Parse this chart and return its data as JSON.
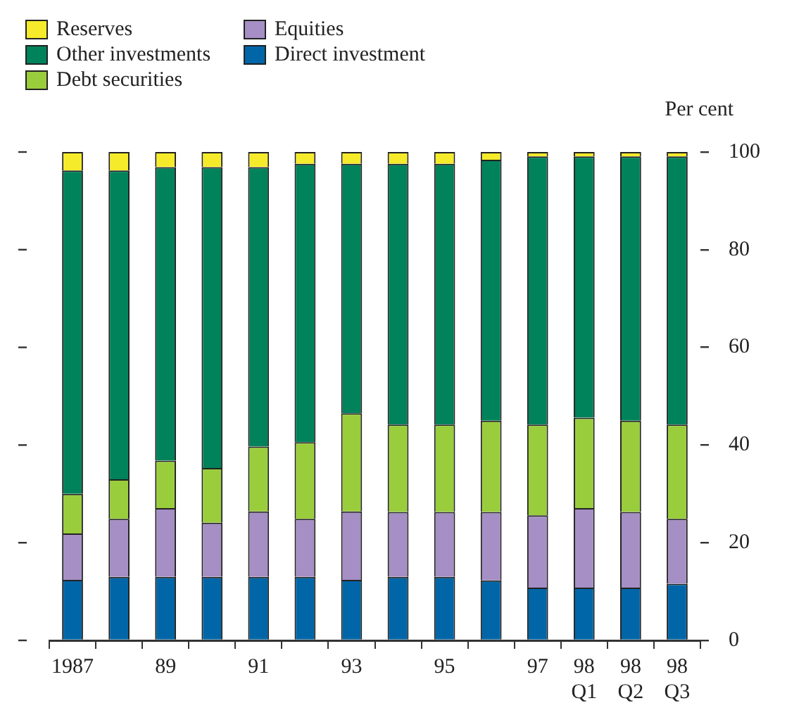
{
  "chart_data": {
    "type": "bar",
    "stacked": true,
    "ylabel": "Per cent",
    "legend": "top left",
    "grid": false,
    "categories": [
      "1987",
      null,
      "89",
      null,
      "91",
      null,
      "93",
      null,
      "95",
      null,
      "97",
      "98\nQ1",
      "98\nQ2",
      "98\nQ3"
    ],
    "ylim": [
      0,
      100
    ],
    "yticks": [
      0,
      20,
      40,
      60,
      80,
      100
    ],
    "series": [
      {
        "name": "Direct investment",
        "color": "#0066a8",
        "values": [
          12.4,
          13,
          13,
          13,
          13,
          13,
          12.4,
          13,
          13,
          12.3,
          10.8,
          10.8,
          10.8,
          11.6
        ]
      },
      {
        "name": "Equities",
        "color": "#a58fc4",
        "values": [
          9.5,
          11.9,
          14.1,
          11.1,
          13.4,
          11.9,
          14,
          13.3,
          13.3,
          14,
          14.8,
          16.3,
          15.5,
          13.3
        ]
      },
      {
        "name": "Debt securities",
        "color": "#9acd3c",
        "values": [
          8.1,
          8.1,
          9.7,
          11.2,
          13.3,
          15.7,
          20.1,
          17.9,
          17.9,
          18.7,
          18.6,
          18.5,
          18.7,
          19.3
        ]
      },
      {
        "name": "Other investments",
        "color": "#00825a",
        "values": [
          66.2,
          63.2,
          60.1,
          61.6,
          57.2,
          57,
          51.1,
          53.4,
          53.4,
          53.4,
          54.9,
          53.5,
          54.1,
          54.9
        ]
      },
      {
        "name": "Reserves",
        "color": "#f5eb2a",
        "values": [
          3.8,
          3.8,
          3.1,
          3.1,
          3.1,
          2.4,
          2.4,
          2.4,
          2.4,
          1.6,
          0.9,
          0.9,
          0.9,
          0.9
        ]
      }
    ]
  }
}
